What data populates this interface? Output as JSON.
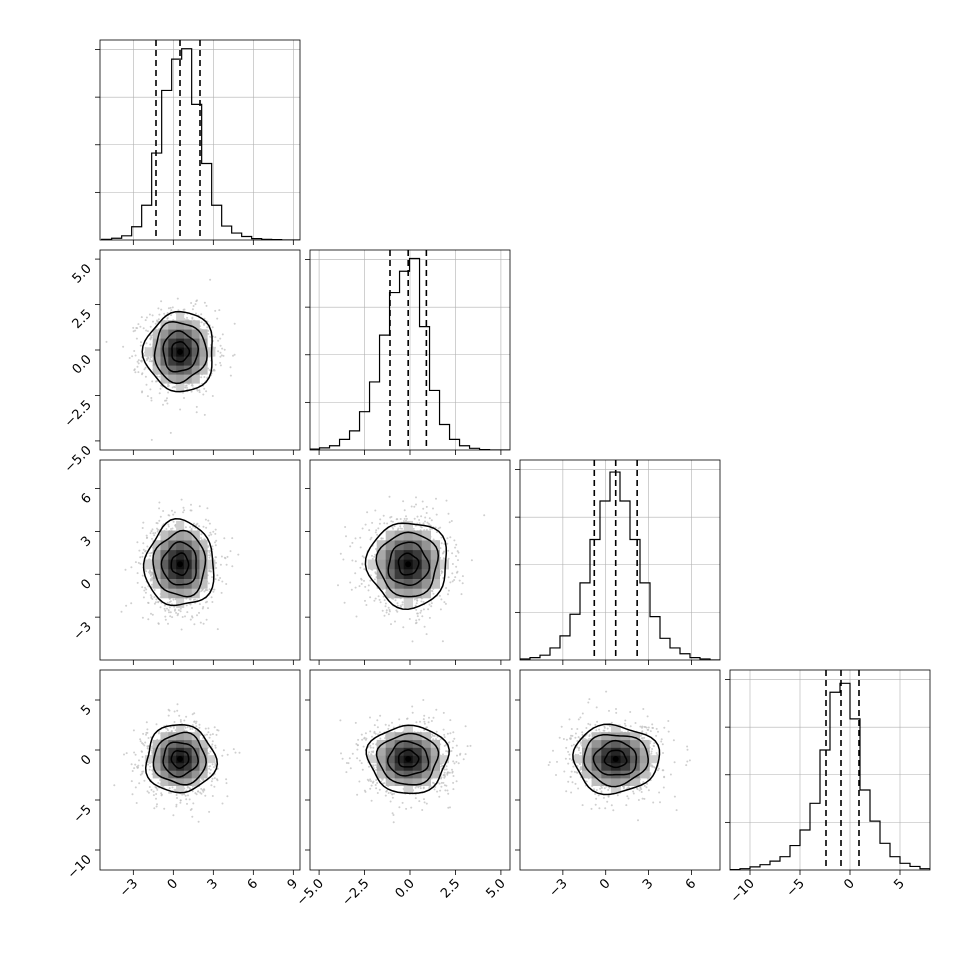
{
  "chart_data": {
    "type": "corner",
    "parameters": [
      {
        "index": 0,
        "range": [
          -5.5,
          9.5
        ],
        "ticks": [
          -3,
          0,
          3,
          6,
          9
        ],
        "tick_labels": [
          "−3",
          "0",
          "3",
          "6",
          "9"
        ],
        "quantiles": [
          -1.3,
          0.5,
          2.0
        ],
        "hist_max": 57.5,
        "hist": [
          {
            "x": -5.0,
            "count": 0.2
          },
          {
            "x": -4.25,
            "count": 0.5
          },
          {
            "x": -3.5,
            "count": 1.2
          },
          {
            "x": -2.75,
            "count": 3.8
          },
          {
            "x": -2.0,
            "count": 10.0
          },
          {
            "x": -1.25,
            "count": 25.0
          },
          {
            "x": -0.5,
            "count": 43.0
          },
          {
            "x": 0.25,
            "count": 52.0
          },
          {
            "x": 1.0,
            "count": 55.0
          },
          {
            "x": 1.75,
            "count": 39.0
          },
          {
            "x": 2.5,
            "count": 22.0
          },
          {
            "x": 3.25,
            "count": 10.0
          },
          {
            "x": 4.0,
            "count": 4.0
          },
          {
            "x": 4.75,
            "count": 2.0
          },
          {
            "x": 5.5,
            "count": 1.0
          },
          {
            "x": 6.25,
            "count": 0.4
          },
          {
            "x": 7.0,
            "count": 0.2
          },
          {
            "x": 7.75,
            "count": 0.1
          },
          {
            "x": 8.5,
            "count": 0.0
          },
          {
            "x": 9.25,
            "count": 0.0
          }
        ]
      },
      {
        "index": 1,
        "range": [
          -5.5,
          5.5
        ],
        "ticks": [
          -5.0,
          -2.5,
          0.0,
          2.5,
          5.0
        ],
        "tick_labels": [
          "−5.0",
          "−2.5",
          "0.0",
          "2.5",
          "5.0"
        ],
        "quantiles": [
          -1.1,
          -0.1,
          0.9
        ],
        "hist_max": 47,
        "hist": [
          {
            "x": -5.25,
            "count": 0.2
          },
          {
            "x": -4.7,
            "count": 0.5
          },
          {
            "x": -4.15,
            "count": 1.0
          },
          {
            "x": -3.6,
            "count": 2.5
          },
          {
            "x": -3.05,
            "count": 4.5
          },
          {
            "x": -2.5,
            "count": 9.0
          },
          {
            "x": -1.95,
            "count": 16.0
          },
          {
            "x": -1.4,
            "count": 27.0
          },
          {
            "x": -0.85,
            "count": 37.0
          },
          {
            "x": -0.3,
            "count": 42.0
          },
          {
            "x": 0.25,
            "count": 45.0
          },
          {
            "x": 0.8,
            "count": 29.0
          },
          {
            "x": 1.35,
            "count": 14.0
          },
          {
            "x": 1.9,
            "count": 6.0
          },
          {
            "x": 2.45,
            "count": 2.5
          },
          {
            "x": 3.0,
            "count": 1.0
          },
          {
            "x": 3.55,
            "count": 0.4
          },
          {
            "x": 4.1,
            "count": 0.1
          },
          {
            "x": 4.65,
            "count": 0.0
          },
          {
            "x": 5.2,
            "count": 0.0
          }
        ]
      },
      {
        "index": 2,
        "range": [
          -6,
          8
        ],
        "ticks": [
          -3,
          0,
          3,
          6
        ],
        "tick_labels": [
          "−3",
          "0",
          "3",
          "6"
        ],
        "quantiles": [
          -0.8,
          0.7,
          2.2
        ],
        "hist_max": 41.5,
        "hist": [
          {
            "x": -5.65,
            "count": 0.2
          },
          {
            "x": -4.95,
            "count": 0.5
          },
          {
            "x": -4.25,
            "count": 1.0
          },
          {
            "x": -3.55,
            "count": 2.5
          },
          {
            "x": -2.85,
            "count": 5.0
          },
          {
            "x": -2.15,
            "count": 9.5
          },
          {
            "x": -1.45,
            "count": 16.0
          },
          {
            "x": -0.75,
            "count": 25.0
          },
          {
            "x": -0.05,
            "count": 33.0
          },
          {
            "x": 0.65,
            "count": 39.0
          },
          {
            "x": 1.35,
            "count": 33.0
          },
          {
            "x": 2.05,
            "count": 25.0
          },
          {
            "x": 2.75,
            "count": 16.0
          },
          {
            "x": 3.45,
            "count": 9.0
          },
          {
            "x": 4.15,
            "count": 4.5
          },
          {
            "x": 4.85,
            "count": 2.5
          },
          {
            "x": 5.55,
            "count": 1.3
          },
          {
            "x": 6.25,
            "count": 0.5
          },
          {
            "x": 6.95,
            "count": 0.2
          },
          {
            "x": 7.65,
            "count": 0.0
          }
        ]
      },
      {
        "index": 3,
        "range": [
          -12,
          8
        ],
        "ticks": [
          -10,
          -5,
          0,
          5
        ],
        "tick_labels": [
          "−10",
          "−5",
          "0",
          "5"
        ],
        "quantiles": [
          -2.4,
          -0.9,
          0.9
        ],
        "hist_max": 45,
        "hist": [
          {
            "x": -11.5,
            "count": 0.1
          },
          {
            "x": -10.5,
            "count": 0.3
          },
          {
            "x": -9.5,
            "count": 0.7
          },
          {
            "x": -8.5,
            "count": 1.2
          },
          {
            "x": -7.5,
            "count": 2.0
          },
          {
            "x": -6.5,
            "count": 3.0
          },
          {
            "x": -5.5,
            "count": 5.5
          },
          {
            "x": -4.5,
            "count": 9.0
          },
          {
            "x": -3.5,
            "count": 15.0
          },
          {
            "x": -2.5,
            "count": 27.0
          },
          {
            "x": -1.5,
            "count": 40.0
          },
          {
            "x": -0.5,
            "count": 42.0
          },
          {
            "x": 0.5,
            "count": 34.0
          },
          {
            "x": 1.5,
            "count": 18.0
          },
          {
            "x": 2.5,
            "count": 11.0
          },
          {
            "x": 3.5,
            "count": 6.0
          },
          {
            "x": 4.5,
            "count": 3.0
          },
          {
            "x": 5.5,
            "count": 1.5
          },
          {
            "x": 6.5,
            "count": 0.8
          },
          {
            "x": 7.5,
            "count": 0.3
          }
        ]
      }
    ],
    "pairs": [
      {
        "x_param": 0,
        "y_param": 1,
        "center": [
          0.5,
          -0.1
        ],
        "sigma": [
          1.3,
          1.1
        ],
        "rho": 0.0
      },
      {
        "x_param": 0,
        "y_param": 2,
        "center": [
          0.5,
          0.7
        ],
        "sigma": [
          1.3,
          1.5
        ],
        "rho": 0.0
      },
      {
        "x_param": 1,
        "y_param": 2,
        "center": [
          -0.1,
          0.7
        ],
        "sigma": [
          1.1,
          1.5
        ],
        "rho": 0.0
      },
      {
        "x_param": 0,
        "y_param": 3,
        "center": [
          0.5,
          -0.9
        ],
        "sigma": [
          1.3,
          1.7
        ],
        "rho": 0.0
      },
      {
        "x_param": 1,
        "y_param": 3,
        "center": [
          -0.1,
          -0.9
        ],
        "sigma": [
          1.1,
          1.7
        ],
        "rho": 0.0
      },
      {
        "x_param": 2,
        "y_param": 3,
        "center": [
          0.7,
          -0.9
        ],
        "sigma": [
          1.5,
          1.7
        ],
        "rho": 0.0
      }
    ],
    "contour_levels_sigma": [
      0.5,
      1.0,
      1.5,
      2.0
    ],
    "scatter_points_per_panel": 1100,
    "grid": true,
    "colors": {
      "hist": "#000000",
      "scatter": "#bfbfbf",
      "grid": "#b0b0b0",
      "contour": "#000000"
    }
  }
}
